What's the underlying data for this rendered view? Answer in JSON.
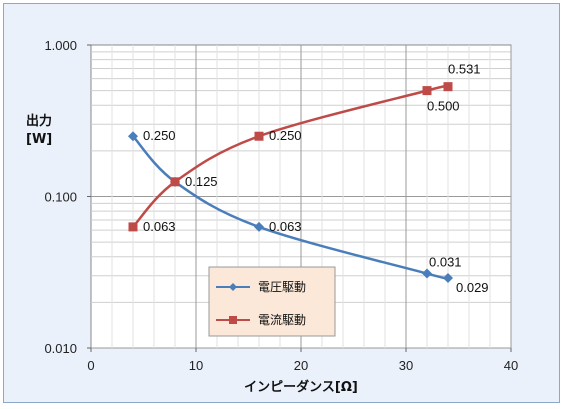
{
  "chart_data": {
    "type": "line",
    "ylabel_lines": [
      "出力",
      "[W]"
    ],
    "xlabel": "インピーダンス[Ω]",
    "xlim": [
      0,
      40
    ],
    "ylim": [
      0.01,
      1
    ],
    "y_scale": "log",
    "x_ticks": [
      "0",
      "10",
      "20",
      "30",
      "40"
    ],
    "y_ticks": [
      "0.010",
      "0.100",
      "1.000"
    ],
    "grid": true,
    "legend_position": "bottom-center",
    "series": [
      {
        "name": "電圧駆動",
        "color": "#4a7ebb",
        "marker": "diamond",
        "x": [
          4,
          8,
          16,
          32,
          34
        ],
        "y": [
          0.25,
          0.125,
          0.063,
          0.031,
          0.029
        ],
        "labels": [
          "0.250",
          "0.125",
          "0.063",
          "0.031",
          "0.029"
        ]
      },
      {
        "name": "電流駆動",
        "color": "#be4b48",
        "marker": "square",
        "x": [
          4,
          8,
          16,
          32,
          34
        ],
        "y": [
          0.063,
          0.125,
          0.25,
          0.5,
          0.531
        ],
        "labels": [
          "0.063",
          "",
          "0.250",
          "0.500",
          "0.531"
        ]
      }
    ]
  }
}
